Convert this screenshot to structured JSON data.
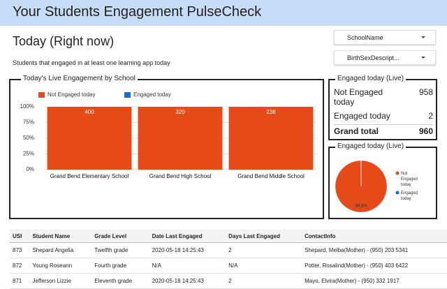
{
  "header": {
    "title": "Your Students Engagement PulseCheck"
  },
  "page": {
    "heading": "Today (Right now)",
    "subtitle": "Students that engaged in at least one learning app today"
  },
  "filters": [
    "SchoolName",
    "BirthSexDescript..."
  ],
  "scorecard": {
    "title": "Engaged today (Live)",
    "rows": [
      [
        "Not Engaged today",
        958
      ],
      [
        "Engaged today",
        2
      ],
      [
        "Grand total",
        960
      ]
    ]
  },
  "chart_data": [
    {
      "type": "bar",
      "title": "Today's Live Engagement by School",
      "stacking": "percent",
      "categories": [
        "Grand Bend Elementary School",
        "Grand Bend High School",
        "Grand Bend Middle School"
      ],
      "series": [
        {
          "name": "Not Engaged today",
          "color": "#e64a19",
          "values": [
            400,
            320,
            238
          ],
          "show_labels": true
        },
        {
          "name": "Engaged today",
          "color": "#1e6fc9",
          "values": [
            0,
            0,
            2
          ],
          "show_labels": false
        }
      ],
      "ylim": [
        0,
        100
      ],
      "yticks": [
        {
          "value": 0,
          "label": "0%"
        },
        {
          "value": 25,
          "label": "25%"
        },
        {
          "value": 50,
          "label": "50%"
        },
        {
          "value": 75,
          "label": "75%"
        },
        {
          "value": 100,
          "label": "100%"
        }
      ],
      "grid": true
    },
    {
      "type": "pie",
      "title": "Engaged today (Live)",
      "categories": [
        "Not Engaged today",
        "Engaged today"
      ],
      "colors": [
        "#e64a19",
        "#1e6fc9"
      ],
      "values": [
        99.8,
        0.2
      ],
      "value_labels": [
        "99.8%",
        null
      ]
    }
  ],
  "table": {
    "columns": [
      "USI",
      "Student Name",
      "Grade Level",
      "Date Last Engaged",
      "Days Last Engaged",
      "ContactInfo"
    ],
    "rows": [
      [
        873,
        "Shepard Angelia",
        "Twelfth grade",
        "2020-05-18 14:25:43",
        2,
        "Shepard, Melba(Mother) - (950) 203 5341"
      ],
      [
        872,
        "Young Roseann",
        "Fourth grade",
        "N/A",
        "N/A",
        "Potter, Rosalind(Mother) - (950) 403 6422"
      ],
      [
        871,
        "Jefferson Lizzie",
        "Eleventh grade",
        "2020-05-18 14:25:43",
        2,
        "Mayo, Elvira(Mother) - (950) 332 1917"
      ]
    ]
  }
}
